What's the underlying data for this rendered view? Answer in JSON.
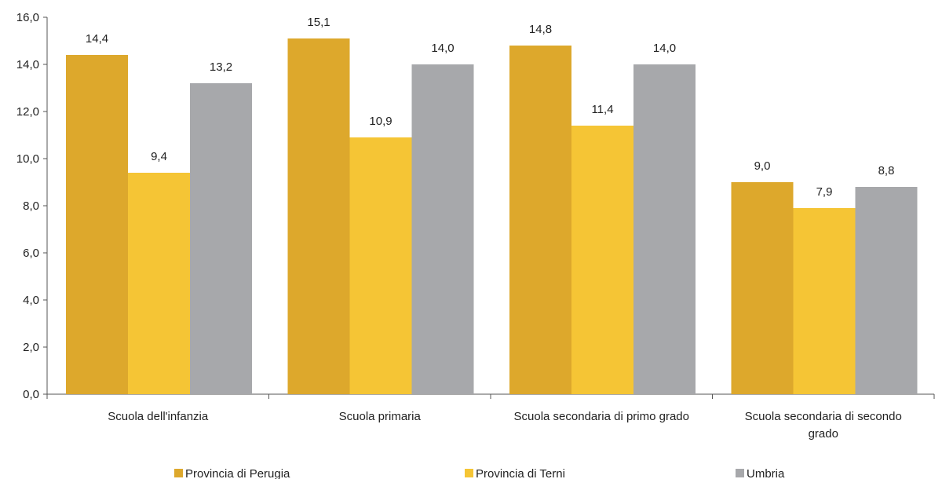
{
  "chart_data": {
    "type": "bar",
    "title": "",
    "xlabel": "",
    "ylabel": "",
    "categories": [
      [
        "Scuola dell'infanzia"
      ],
      [
        "Scuola primaria"
      ],
      [
        "Scuola secondaria di primo grado"
      ],
      [
        "Scuola secondaria di secondo",
        "grado"
      ]
    ],
    "series": [
      {
        "name": "Provincia di Perugia",
        "color": "#DDA82C",
        "values": [
          14.4,
          15.1,
          14.8,
          9.0
        ]
      },
      {
        "name": "Provincia di Terni",
        "color": "#F5C535",
        "values": [
          9.4,
          10.9,
          11.4,
          7.9
        ]
      },
      {
        "name": "Umbria",
        "color": "#A7A8AB",
        "values": [
          13.2,
          14.0,
          14.0,
          8.8
        ]
      }
    ],
    "ylim": [
      0,
      16
    ],
    "yticks": [
      "0,0",
      "2,0",
      "4,0",
      "6,0",
      "8,0",
      "10,0",
      "12,0",
      "14,0",
      "16,0"
    ],
    "value_labels": [
      [
        "14,4",
        "15,1",
        "14,8",
        "9,0"
      ],
      [
        "9,4",
        "10,9",
        "11,4",
        "7,9"
      ],
      [
        "13,2",
        "14,0",
        "14,0",
        "8,8"
      ]
    ],
    "grid": false,
    "legend_position": "bottom"
  }
}
